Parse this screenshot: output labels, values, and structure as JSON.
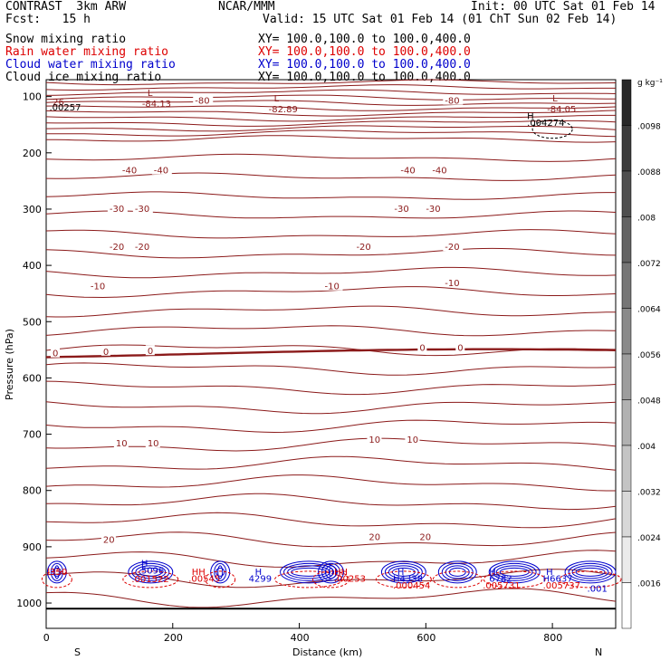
{
  "header": {
    "line1_left": "CONTRAST  3km ARW",
    "line1_mid": "NCAR/MMM",
    "line1_right": "Init: 00 UTC Sat 01 Feb 14",
    "line2_left": "Fcst:   15 h",
    "line2_right": "Valid: 15 UTC Sat 01 Feb 14 (01 ChT Sun 02 Feb 14)"
  },
  "fields": [
    {
      "name": "Snow mixing ratio",
      "xy": "XY= 100.0,100.0 to 100.0,400.0",
      "color": "#000000"
    },
    {
      "name": "Rain water mixing ratio",
      "xy": "XY= 100.0,100.0 to 100.0,400.0",
      "color": "#dd0000"
    },
    {
      "name": "Cloud water mixing ratio",
      "xy": "XY= 100.0,100.0 to 100.0,400.0",
      "color": "#0000cc"
    },
    {
      "name": "Cloud ice mixing ratio",
      "xy": "XY= 100.0,100.0 to 100.0,400.0",
      "color": "#000000"
    }
  ],
  "chart_data": {
    "type": "contour-cross-section",
    "xlabel": "Distance (km)",
    "ylabel": "Pressure (hPa)",
    "xlim": [
      0,
      900
    ],
    "ylim": [
      1045,
      70
    ],
    "x_ticks": [
      "0",
      "200",
      "400",
      "600",
      "800"
    ],
    "y_ticks": [
      "100",
      "200",
      "300",
      "400",
      "500",
      "600",
      "700",
      "800",
      "900",
      "1000"
    ],
    "end_labels": {
      "left": "S",
      "right": "N"
    },
    "colorbar": {
      "unit": "g kg⁻¹",
      "labels": [
        ".0098",
        ".0088",
        ".008",
        ".0072",
        ".0064",
        ".0056",
        ".0048",
        ".004",
        ".0032",
        ".0024",
        ".0016"
      ]
    },
    "temperature_labels": [
      {
        "text": "-80",
        "x": 235,
        "p": 108
      },
      {
        "text": "-80",
        "x": 630,
        "p": 108
      },
      {
        "text": "-40",
        "x": 120,
        "p": 232
      },
      {
        "text": "-40",
        "x": 170,
        "p": 232
      },
      {
        "text": "-40",
        "x": 560,
        "p": 232
      },
      {
        "text": "-40",
        "x": 610,
        "p": 232
      },
      {
        "text": "-30",
        "x": 100,
        "p": 300
      },
      {
        "text": "-30",
        "x": 140,
        "p": 300
      },
      {
        "text": "-30",
        "x": 550,
        "p": 300
      },
      {
        "text": "-30",
        "x": 600,
        "p": 300
      },
      {
        "text": "-20",
        "x": 100,
        "p": 368
      },
      {
        "text": "-20",
        "x": 140,
        "p": 368
      },
      {
        "text": "-20",
        "x": 490,
        "p": 368
      },
      {
        "text": "-20",
        "x": 630,
        "p": 368
      },
      {
        "text": "-10",
        "x": 70,
        "p": 438
      },
      {
        "text": "-10",
        "x": 440,
        "p": 438
      },
      {
        "text": "-10",
        "x": 630,
        "p": 432
      },
      {
        "text": "0",
        "x": 10,
        "p": 557
      },
      {
        "text": "0",
        "x": 90,
        "p": 554
      },
      {
        "text": "0",
        "x": 160,
        "p": 553
      },
      {
        "text": "0",
        "x": 590,
        "p": 547
      },
      {
        "text": "0",
        "x": 650,
        "p": 547
      },
      {
        "text": "10",
        "x": 110,
        "p": 717
      },
      {
        "text": "10",
        "x": 160,
        "p": 717
      },
      {
        "text": "10",
        "x": 510,
        "p": 710
      },
      {
        "text": "10",
        "x": 570,
        "p": 710
      },
      {
        "text": "20",
        "x": 90,
        "p": 888
      },
      {
        "text": "20",
        "x": 510,
        "p": 883
      },
      {
        "text": "20",
        "x": 590,
        "p": 883
      }
    ],
    "low_high_labels": [
      {
        "mark": "L",
        "value": "-84.13",
        "x": 160,
        "p": 102
      },
      {
        "mark": "L",
        "value": "-82.89",
        "x": 360,
        "p": 112
      },
      {
        "mark": "L",
        "value": "-84.05",
        "x": 800,
        "p": 112
      }
    ],
    "extra_annotations": [
      {
        "text": "-26",
        "x": 5,
        "p": 115,
        "color": "#8b1a1a"
      },
      {
        "text": ".00257",
        "x": 5,
        "p": 125,
        "color": "#000000"
      },
      {
        "text": "H",
        "x": 760,
        "p": 140,
        "color": "#000000"
      },
      {
        "text": ".004274",
        "x": 760,
        "p": 152,
        "color": "#000000"
      },
      {
        "text": "l350",
        "x": 2,
        "p": 950,
        "color": "#dd0000"
      },
      {
        "text": "H",
        "x": 150,
        "p": 935,
        "color": "#0000cc"
      },
      {
        "text": "5096",
        "x": 150,
        "p": 948,
        "color": "#0000cc"
      },
      {
        "text": ".001522",
        "x": 135,
        "p": 963,
        "color": "#dd0000"
      },
      {
        "text": "HH",
        "x": 230,
        "p": 950,
        "color": "#dd0000"
      },
      {
        "text": ".00545",
        "x": 225,
        "p": 962,
        "color": "#dd0000"
      },
      {
        "text": "H",
        "x": 330,
        "p": 950,
        "color": "#0000cc"
      },
      {
        "text": "4299",
        "x": 320,
        "p": 962,
        "color": "#0000cc"
      },
      {
        "text": "HH",
        "x": 455,
        "p": 950,
        "color": "#dd0000"
      },
      {
        "text": ".00253",
        "x": 455,
        "p": 962,
        "color": "#dd0000"
      },
      {
        "text": "H",
        "x": 555,
        "p": 950,
        "color": "#0000cc"
      },
      {
        "text": "H4338",
        "x": 548,
        "p": 962,
        "color": "#0000cc"
      },
      {
        "text": ".000454",
        "x": 548,
        "p": 974,
        "color": "#dd0000"
      },
      {
        "text": "H",
        "x": 700,
        "p": 950,
        "color": "#0000cc"
      },
      {
        "text": "6782",
        "x": 700,
        "p": 962,
        "color": "#0000cc"
      },
      {
        "text": ".005731",
        "x": 690,
        "p": 974,
        "color": "#dd0000"
      },
      {
        "text": "H",
        "x": 790,
        "p": 950,
        "color": "#0000cc"
      },
      {
        "text": "H6637",
        "x": 785,
        "p": 962,
        "color": "#0000cc"
      },
      {
        "text": ".005737",
        "x": 785,
        "p": 974,
        "color": "#dd0000"
      },
      {
        "text": ".001",
        "x": 855,
        "p": 980,
        "color": "#0000cc"
      }
    ]
  }
}
